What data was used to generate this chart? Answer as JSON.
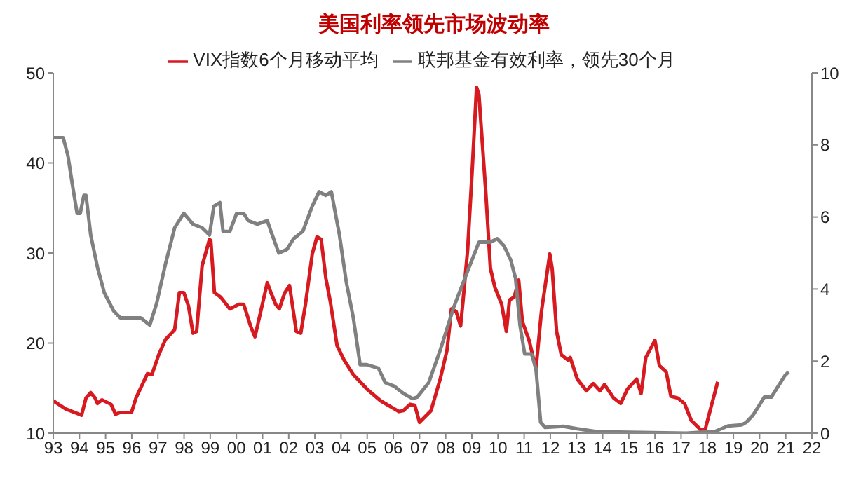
{
  "chart_data": {
    "type": "line",
    "title": "美国利率领先市场波动率",
    "xlim": [
      1993,
      2022
    ],
    "xticks": [
      {
        "value": 1993,
        "label": "93"
      },
      {
        "value": 1994,
        "label": "94"
      },
      {
        "value": 1995,
        "label": "95"
      },
      {
        "value": 1996,
        "label": "96"
      },
      {
        "value": 1997,
        "label": "97"
      },
      {
        "value": 1998,
        "label": "98"
      },
      {
        "value": 1999,
        "label": "99"
      },
      {
        "value": 2000,
        "label": "00"
      },
      {
        "value": 2001,
        "label": "01"
      },
      {
        "value": 2002,
        "label": "02"
      },
      {
        "value": 2003,
        "label": "03"
      },
      {
        "value": 2004,
        "label": "04"
      },
      {
        "value": 2005,
        "label": "05"
      },
      {
        "value": 2006,
        "label": "06"
      },
      {
        "value": 2007,
        "label": "07"
      },
      {
        "value": 2008,
        "label": "08"
      },
      {
        "value": 2009,
        "label": "09"
      },
      {
        "value": 2010,
        "label": "10"
      },
      {
        "value": 2011,
        "label": "11"
      },
      {
        "value": 2012,
        "label": "12"
      },
      {
        "value": 2013,
        "label": "13"
      },
      {
        "value": 2014,
        "label": "14"
      },
      {
        "value": 2015,
        "label": "15"
      },
      {
        "value": 2016,
        "label": "16"
      },
      {
        "value": 2017,
        "label": "17"
      },
      {
        "value": 2018,
        "label": "18"
      },
      {
        "value": 2019,
        "label": "19"
      },
      {
        "value": 2020,
        "label": "20"
      },
      {
        "value": 2021,
        "label": "21"
      },
      {
        "value": 2022,
        "label": "22"
      }
    ],
    "ylim": [
      10,
      50
    ],
    "yticks": [
      10,
      20,
      30,
      40,
      50
    ],
    "y2lim": [
      0,
      10
    ],
    "y2ticks": [
      0,
      2,
      4,
      6,
      8,
      10
    ],
    "legend": "top",
    "grid": false,
    "marker": "none",
    "line_style": "solid",
    "series": [
      {
        "name": "VIX指数6个月移动平均",
        "color": "#d71920",
        "x": [
          1993.0,
          1993.47,
          1993.99,
          1994.08,
          1994.25,
          1994.43,
          1994.6,
          1994.69,
          1994.86,
          1995.21,
          1995.38,
          1995.56,
          1995.99,
          1996.16,
          1996.42,
          1996.6,
          1996.77,
          1997.03,
          1997.29,
          1997.64,
          1997.82,
          1997.99,
          1998.17,
          1998.34,
          1998.48,
          1998.69,
          1998.97,
          1999.02,
          1999.16,
          1999.4,
          1999.75,
          2000.1,
          2000.28,
          2000.54,
          2000.71,
          2000.89,
          2001.18,
          2001.32,
          2001.5,
          2001.64,
          2001.85,
          2002.03,
          2002.29,
          2002.46,
          2002.64,
          2002.9,
          2003.08,
          2003.24,
          2003.42,
          2003.59,
          2003.85,
          2004.12,
          2004.47,
          2004.99,
          2005.51,
          2006.04,
          2006.21,
          2006.38,
          2006.64,
          2006.82,
          2007.0,
          2007.44,
          2007.79,
          2008.05,
          2008.22,
          2008.4,
          2008.57,
          2008.66,
          2008.84,
          2009.01,
          2009.18,
          2009.27,
          2009.53,
          2009.71,
          2009.88,
          2010.14,
          2010.32,
          2010.44,
          2010.62,
          2010.79,
          2010.93,
          2011.19,
          2011.45,
          2011.66,
          2011.98,
          2012.07,
          2012.24,
          2012.42,
          2012.68,
          2012.76,
          2013.03,
          2013.38,
          2013.64,
          2013.9,
          2014.07,
          2014.42,
          2014.69,
          2014.95,
          2015.3,
          2015.47,
          2015.65,
          2016.0,
          2016.17,
          2016.43,
          2016.61,
          2016.87,
          2017.13,
          2017.39,
          2017.74,
          2017.92,
          2018.18,
          2018.4
        ],
        "values": [
          13.6,
          12.7,
          12.1,
          12.0,
          13.9,
          14.5,
          13.9,
          13.3,
          13.7,
          13.2,
          12.1,
          12.3,
          12.3,
          13.9,
          15.5,
          16.6,
          16.5,
          18.7,
          20.4,
          21.5,
          25.6,
          25.6,
          24.1,
          21.1,
          21.3,
          28.6,
          31.5,
          31.4,
          25.6,
          25.1,
          23.8,
          24.3,
          24.3,
          21.9,
          20.7,
          23.0,
          26.7,
          25.6,
          24.3,
          23.8,
          25.6,
          26.4,
          21.3,
          21.1,
          24.3,
          29.9,
          31.8,
          31.5,
          27.2,
          24.6,
          19.7,
          18.1,
          16.5,
          14.9,
          13.6,
          12.7,
          12.4,
          12.5,
          13.2,
          13.1,
          11.2,
          12.5,
          16.0,
          19.2,
          23.8,
          23.5,
          21.9,
          24.6,
          30.4,
          39.0,
          48.4,
          47.6,
          36.9,
          28.3,
          26.2,
          24.3,
          21.3,
          24.8,
          25.1,
          27.0,
          22.4,
          20.3,
          17.1,
          23.5,
          29.9,
          28.3,
          21.3,
          18.7,
          18.1,
          18.4,
          16.0,
          14.7,
          15.5,
          14.7,
          15.4,
          13.9,
          13.3,
          14.9,
          16.0,
          14.4,
          18.4,
          20.3,
          17.5,
          16.8,
          14.1,
          13.9,
          13.3,
          11.4,
          10.4,
          10.4,
          13.3,
          15.7
        ]
      },
      {
        "name": "联邦基金有效利率，领先30个月",
        "color": "#808080",
        "axis": "y2",
        "x": [
          1993.0,
          1993.38,
          1993.56,
          1993.73,
          1993.91,
          1994.03,
          1994.17,
          1994.25,
          1994.43,
          1994.69,
          1994.95,
          1995.3,
          1995.56,
          1995.99,
          1996.34,
          1996.69,
          1996.95,
          1997.29,
          1997.64,
          1997.99,
          1998.34,
          1998.69,
          1998.97,
          1999.14,
          1999.37,
          1999.49,
          1999.75,
          2000.01,
          2000.28,
          2000.45,
          2000.8,
          2001.18,
          2001.32,
          2001.62,
          2001.93,
          2002.19,
          2002.54,
          2002.9,
          2003.16,
          2003.42,
          2003.63,
          2003.94,
          2004.2,
          2004.47,
          2004.73,
          2004.99,
          2005.43,
          2005.69,
          2006.04,
          2006.39,
          2006.73,
          2006.91,
          2007.35,
          2007.79,
          2008.31,
          2008.84,
          2009.27,
          2009.71,
          2009.97,
          2010.23,
          2010.49,
          2010.67,
          2010.84,
          2011.02,
          2011.28,
          2011.45,
          2011.63,
          2011.8,
          2012.5,
          2013.03,
          2013.72,
          2014.6,
          2017.2,
          2018.3,
          2018.79,
          2019.31,
          2019.49,
          2019.75,
          2020.18,
          2020.45,
          2020.71,
          2020.97,
          2021.11
        ],
        "values": [
          8.2,
          8.2,
          7.7,
          6.9,
          6.1,
          6.1,
          6.6,
          6.6,
          5.5,
          4.6,
          3.9,
          3.4,
          3.2,
          3.2,
          3.2,
          3.0,
          3.6,
          4.7,
          5.7,
          6.1,
          5.8,
          5.7,
          5.5,
          6.3,
          6.4,
          5.6,
          5.6,
          6.1,
          6.1,
          5.9,
          5.8,
          5.9,
          5.6,
          5.0,
          5.1,
          5.4,
          5.6,
          6.3,
          6.7,
          6.6,
          6.7,
          5.5,
          4.2,
          3.2,
          1.9,
          1.9,
          1.8,
          1.4,
          1.3,
          1.1,
          0.96,
          1.0,
          1.4,
          2.3,
          3.5,
          4.5,
          5.3,
          5.3,
          5.4,
          5.2,
          4.8,
          4.3,
          3.0,
          2.2,
          2.2,
          1.8,
          0.3,
          0.16,
          0.19,
          0.12,
          0.05,
          0.03,
          0,
          0.05,
          0.2,
          0.23,
          0.3,
          0.5,
          1.0,
          1.0,
          1.3,
          1.6,
          1.7
        ]
      }
    ]
  }
}
